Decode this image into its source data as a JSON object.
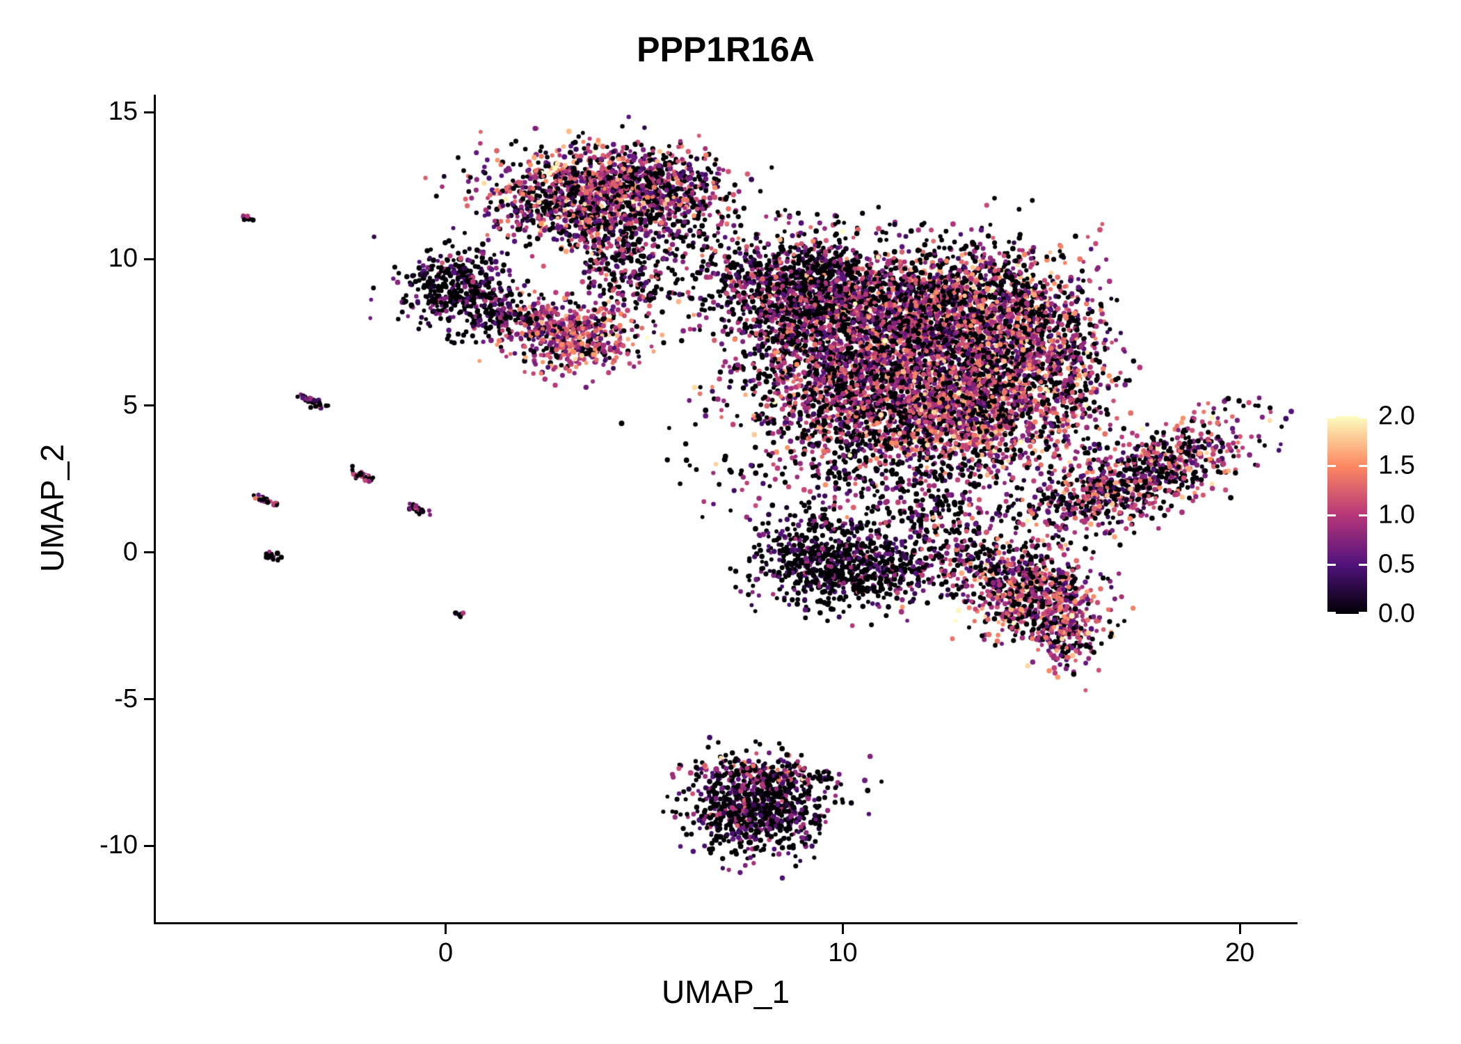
{
  "chart_data": {
    "type": "scatter",
    "title": "PPP1R16A",
    "xlabel": "UMAP_1",
    "ylabel": "UMAP_2",
    "x_ticks": [
      0,
      10,
      20
    ],
    "x_tick_labels": [
      "0",
      "10",
      "20"
    ],
    "y_ticks": [
      15,
      10,
      5,
      0,
      -5,
      -10
    ],
    "y_tick_labels": [
      "15",
      "10",
      "5",
      "0",
      "-5",
      "-10"
    ],
    "x_range": [
      -7.3,
      21.4
    ],
    "y_range": [
      -12.6,
      15.6
    ],
    "grid": false,
    "background": "#ffffff",
    "point_radius_px": 3.3,
    "seed": 42,
    "colorbar": {
      "vmin": 0.0,
      "vmax": 2.0,
      "ticks": [
        2.0,
        1.5,
        1.0,
        0.5,
        0.0
      ],
      "tick_labels": [
        "2.0",
        "1.5",
        "1.0",
        "0.5",
        "0.0"
      ],
      "colormap": "magma",
      "stops": [
        {
          "t": 0.0,
          "color": "#000004"
        },
        {
          "t": 0.25,
          "color": "#51127c"
        },
        {
          "t": 0.5,
          "color": "#b73779"
        },
        {
          "t": 0.75,
          "color": "#fc8961"
        },
        {
          "t": 1.0,
          "color": "#fcfdbf"
        }
      ]
    },
    "clusters": [
      {
        "name": "top-blob-core",
        "cx": 3.9,
        "cy": 12.4,
        "sx": 1.45,
        "sy": 0.72,
        "angle_deg": 0,
        "n": 1150,
        "p_zero": 0.3,
        "mean": 1.0,
        "sd": 0.45
      },
      {
        "name": "top-blob-fringe",
        "cx": 4.0,
        "cy": 11.3,
        "sx": 1.25,
        "sy": 0.55,
        "angle_deg": 0,
        "n": 380,
        "p_zero": 0.4,
        "mean": 0.9,
        "sd": 0.4
      },
      {
        "name": "top-blob-right-edge",
        "cx": 5.6,
        "cy": 12.6,
        "sx": 0.5,
        "sy": 0.55,
        "angle_deg": 0,
        "n": 140,
        "p_zero": 0.5,
        "mean": 0.8,
        "sd": 0.4
      },
      {
        "name": "top-tail",
        "cx": 4.4,
        "cy": 9.9,
        "sx": 0.6,
        "sy": 0.75,
        "angle_deg": 0,
        "n": 200,
        "p_zero": 0.5,
        "mean": 0.85,
        "sd": 0.4
      },
      {
        "name": "bridge-top-main",
        "cx": 6.7,
        "cy": 10.2,
        "sx": 1.0,
        "sy": 0.55,
        "angle_deg": -15,
        "n": 90,
        "p_zero": 0.6,
        "mean": 0.7,
        "sd": 0.35
      },
      {
        "name": "stray-mid-top",
        "cx": 6.9,
        "cy": 11.3,
        "sx": 0.55,
        "sy": 0.5,
        "angle_deg": 0,
        "n": 22,
        "p_zero": 0.5,
        "mean": 0.8,
        "sd": 0.4
      },
      {
        "name": "left-dark-cluster",
        "cx": 0.35,
        "cy": 9.0,
        "sx": 0.75,
        "sy": 0.72,
        "angle_deg": 0,
        "n": 430,
        "p_zero": 0.6,
        "mean": 0.5,
        "sd": 0.3
      },
      {
        "name": "left-dark-appendage",
        "cx": 1.35,
        "cy": 8.05,
        "sx": 0.45,
        "sy": 0.4,
        "angle_deg": 0,
        "n": 90,
        "p_zero": 0.55,
        "mean": 0.55,
        "sd": 0.3
      },
      {
        "name": "mid-pink-cluster",
        "cx": 3.25,
        "cy": 7.4,
        "sx": 0.8,
        "sy": 0.62,
        "angle_deg": 0,
        "n": 520,
        "p_zero": 0.22,
        "mean": 1.05,
        "sd": 0.4
      },
      {
        "name": "mid-pink-west",
        "cx": 2.3,
        "cy": 7.8,
        "sx": 0.4,
        "sy": 0.4,
        "angle_deg": 0,
        "n": 80,
        "p_zero": 0.35,
        "mean": 0.9,
        "sd": 0.4
      },
      {
        "name": "bridge-pink-left",
        "cx": 5.2,
        "cy": 8.9,
        "sx": 0.5,
        "sy": 0.45,
        "angle_deg": 0,
        "n": 55,
        "p_zero": 0.5,
        "mean": 0.8,
        "sd": 0.4
      },
      {
        "name": "main-upper-left",
        "cx": 8.9,
        "cy": 8.7,
        "sx": 1.05,
        "sy": 1.1,
        "angle_deg": 0,
        "n": 1250,
        "p_zero": 0.5,
        "mean": 0.8,
        "sd": 0.38
      },
      {
        "name": "main-upper-mid",
        "cx": 11.7,
        "cy": 8.3,
        "sx": 1.5,
        "sy": 1.15,
        "angle_deg": 0,
        "n": 1650,
        "p_zero": 0.38,
        "mean": 0.95,
        "sd": 0.42
      },
      {
        "name": "main-upper-right",
        "cx": 13.9,
        "cy": 7.7,
        "sx": 1.15,
        "sy": 1.35,
        "angle_deg": 0,
        "n": 1150,
        "p_zero": 0.34,
        "mean": 1.0,
        "sd": 0.45
      },
      {
        "name": "main-mid",
        "cx": 10.6,
        "cy": 5.6,
        "sx": 1.55,
        "sy": 1.15,
        "angle_deg": 0,
        "n": 1550,
        "p_zero": 0.4,
        "mean": 0.95,
        "sd": 0.4
      },
      {
        "name": "main-core-pink",
        "cx": 13.2,
        "cy": 4.95,
        "sx": 1.25,
        "sy": 1.05,
        "angle_deg": 0,
        "n": 1250,
        "p_zero": 0.28,
        "mean": 1.1,
        "sd": 0.45
      },
      {
        "name": "main-right-edge",
        "cx": 15.6,
        "cy": 6.3,
        "sx": 0.65,
        "sy": 1.45,
        "angle_deg": 0,
        "n": 430,
        "p_zero": 0.42,
        "mean": 0.9,
        "sd": 0.4
      },
      {
        "name": "main-lower-halo",
        "cx": 11.3,
        "cy": 3.3,
        "sx": 2.1,
        "sy": 1.25,
        "angle_deg": 0,
        "n": 560,
        "p_zero": 0.55,
        "mean": 0.7,
        "sd": 0.35
      },
      {
        "name": "main-below-sparse",
        "cx": 12.4,
        "cy": 1.5,
        "sx": 1.15,
        "sy": 0.7,
        "angle_deg": 0,
        "n": 130,
        "p_zero": 0.55,
        "mean": 0.75,
        "sd": 0.35
      },
      {
        "name": "right-flap",
        "cx": 17.55,
        "cy": 2.6,
        "sx": 1.55,
        "sy": 0.6,
        "angle_deg": 33,
        "n": 860,
        "p_zero": 0.38,
        "mean": 0.95,
        "sd": 0.42
      },
      {
        "name": "flap-connector",
        "cx": 15.3,
        "cy": 1.6,
        "sx": 0.5,
        "sy": 0.35,
        "angle_deg": 30,
        "n": 50,
        "p_zero": 0.55,
        "mean": 0.7,
        "sd": 0.35
      },
      {
        "name": "dark-sub-cluster",
        "cx": 9.6,
        "cy": -0.3,
        "sx": 0.95,
        "sy": 0.8,
        "angle_deg": 0,
        "n": 640,
        "p_zero": 0.68,
        "mean": 0.45,
        "sd": 0.3
      },
      {
        "name": "dark-sub-east",
        "cx": 11.2,
        "cy": -0.55,
        "sx": 0.75,
        "sy": 0.5,
        "angle_deg": 0,
        "n": 230,
        "p_zero": 0.55,
        "mean": 0.65,
        "sd": 0.35
      },
      {
        "name": "bridge-main-lowerright",
        "cx": 13.3,
        "cy": -0.3,
        "sx": 0.85,
        "sy": 0.6,
        "angle_deg": -20,
        "n": 170,
        "p_zero": 0.5,
        "mean": 0.8,
        "sd": 0.4
      },
      {
        "name": "lower-right-cluster",
        "cx": 14.8,
        "cy": -1.5,
        "sx": 0.95,
        "sy": 0.75,
        "angle_deg": -40,
        "n": 720,
        "p_zero": 0.28,
        "mean": 1.05,
        "sd": 0.45
      },
      {
        "name": "lower-right-tail",
        "cx": 15.6,
        "cy": -3.0,
        "sx": 0.4,
        "sy": 0.55,
        "angle_deg": 0,
        "n": 150,
        "p_zero": 0.35,
        "mean": 1.0,
        "sd": 0.4
      },
      {
        "name": "bottom-cluster",
        "cx": 7.8,
        "cy": -8.7,
        "sx": 0.82,
        "sy": 0.8,
        "angle_deg": 0,
        "n": 820,
        "p_zero": 0.62,
        "mean": 0.55,
        "sd": 0.33
      },
      {
        "name": "bottom-cluster-top-edge",
        "cx": 7.9,
        "cy": -7.5,
        "sx": 0.85,
        "sy": 0.18,
        "angle_deg": -5,
        "n": 120,
        "p_zero": 0.38,
        "mean": 0.9,
        "sd": 0.4
      },
      {
        "name": "bottom-cluster-east-dot",
        "cx": 9.55,
        "cy": -7.6,
        "sx": 0.12,
        "sy": 0.1,
        "angle_deg": 0,
        "n": 14,
        "p_zero": 0.5,
        "mean": 0.7,
        "sd": 0.3
      },
      {
        "name": "streak-far-upper-left",
        "cx": -5.05,
        "cy": 11.4,
        "sx": 0.12,
        "sy": 0.05,
        "angle_deg": -30,
        "n": 10,
        "p_zero": 0.3,
        "mean": 1.1,
        "sd": 0.4
      },
      {
        "name": "streak-left-a",
        "cx": -3.35,
        "cy": 5.15,
        "sx": 0.18,
        "sy": 0.06,
        "angle_deg": -30,
        "n": 36,
        "p_zero": 0.55,
        "mean": 0.7,
        "sd": 0.35
      },
      {
        "name": "streak-left-b",
        "cx": -2.15,
        "cy": 2.6,
        "sx": 0.16,
        "sy": 0.06,
        "angle_deg": -30,
        "n": 32,
        "p_zero": 0.45,
        "mean": 0.85,
        "sd": 0.4
      },
      {
        "name": "streak-left-c",
        "cx": -4.55,
        "cy": 1.75,
        "sx": 0.15,
        "sy": 0.06,
        "angle_deg": -30,
        "n": 28,
        "p_zero": 0.45,
        "mean": 0.9,
        "sd": 0.4
      },
      {
        "name": "streak-left-d",
        "cx": -0.7,
        "cy": 1.45,
        "sx": 0.16,
        "sy": 0.06,
        "angle_deg": -30,
        "n": 32,
        "p_zero": 0.6,
        "mean": 0.6,
        "sd": 0.3
      },
      {
        "name": "streak-left-e",
        "cx": -4.4,
        "cy": -0.1,
        "sx": 0.13,
        "sy": 0.05,
        "angle_deg": -30,
        "n": 20,
        "p_zero": 0.75,
        "mean": 0.4,
        "sd": 0.25
      },
      {
        "name": "dot-left-low",
        "cx": 0.35,
        "cy": -2.1,
        "sx": 0.07,
        "sy": 0.05,
        "angle_deg": 0,
        "n": 7,
        "p_zero": 0.5,
        "mean": 0.6,
        "sd": 0.3
      }
    ]
  }
}
